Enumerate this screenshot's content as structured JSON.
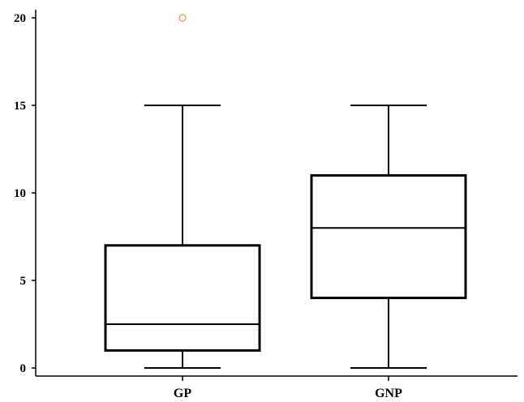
{
  "chart_data": {
    "type": "box",
    "title": "",
    "xlabel": "",
    "ylabel": "",
    "ylim": [
      0,
      20
    ],
    "yticks": [
      0,
      5,
      10,
      15,
      20
    ],
    "grid": false,
    "categories": [
      "GP",
      "GNP"
    ],
    "boxes": [
      {
        "category": "GP",
        "whisker_low": 0,
        "q1": 1,
        "median": 2.5,
        "q3": 7,
        "whisker_high": 15,
        "outliers": [
          20
        ]
      },
      {
        "category": "GNP",
        "whisker_low": 0,
        "q1": 4,
        "median": 8,
        "q3": 11,
        "whisker_high": 15,
        "outliers": []
      }
    ],
    "colors": {
      "box": "#000000",
      "outlier": "#f0a070"
    }
  }
}
